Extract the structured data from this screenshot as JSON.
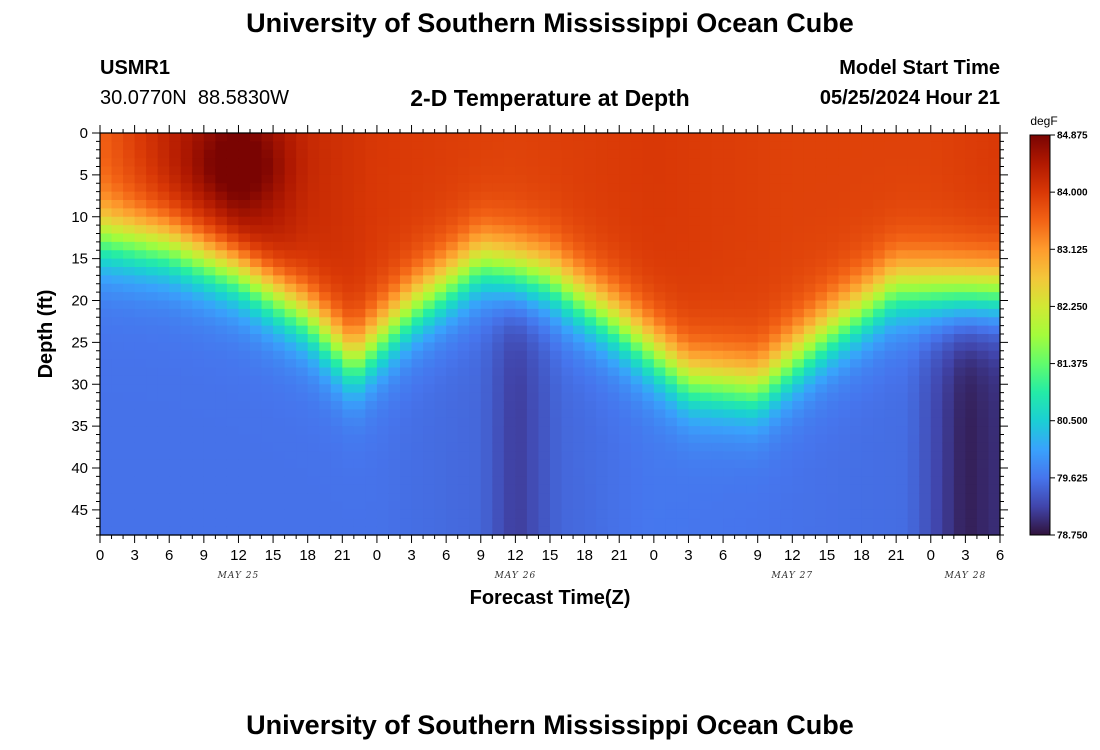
{
  "header": {
    "title": "University of Southern Mississippi Ocean Cube",
    "station_id": "USMR1",
    "coords": "30.0770N  88.5830W",
    "plot_title": "2-D Temperature at Depth",
    "start_label": "Model Start Time",
    "start_value": "05/25/2024 Hour 21"
  },
  "footer": {
    "title": "University of Southern Mississippi Ocean Cube"
  },
  "chart_data": {
    "type": "heatmap",
    "title": "2-D Temperature at Depth",
    "xlabel": "Forecast Time(Z)",
    "ylabel": "Depth (ft)",
    "x_hours": [
      0,
      78
    ],
    "ylim": [
      0,
      48
    ],
    "x_ticks": [
      "0",
      "3",
      "6",
      "9",
      "12",
      "15",
      "18",
      "21",
      "0",
      "3",
      "6",
      "9",
      "12",
      "15",
      "18",
      "21",
      "0",
      "3",
      "6",
      "9",
      "12",
      "15",
      "18",
      "21",
      "0",
      "3",
      "6"
    ],
    "y_ticks": [
      "0",
      "5",
      "10",
      "15",
      "20",
      "25",
      "30",
      "35",
      "40",
      "45"
    ],
    "y_tick_values": [
      0,
      5,
      10,
      15,
      20,
      25,
      30,
      35,
      40,
      45
    ],
    "date_labels": [
      {
        "label": "MAY 25",
        "hour": 12
      },
      {
        "label": "MAY 26",
        "hour": 36
      },
      {
        "label": "MAY 27",
        "hour": 60
      },
      {
        "label": "MAY 28",
        "hour": 75
      }
    ],
    "colorbar": {
      "unit": "degF",
      "min": 78.75,
      "max": 84.875,
      "ticks": [
        "84.875",
        "84.000",
        "83.125",
        "82.250",
        "81.375",
        "80.500",
        "79.625",
        "78.750"
      ],
      "tick_values": [
        84.875,
        84.0,
        83.125,
        82.25,
        81.375,
        80.5,
        79.625,
        78.75
      ],
      "colors": [
        "#30123b",
        "#4145ab",
        "#4675ed",
        "#39a2fc",
        "#1bcfd4",
        "#24eca6",
        "#61fc6c",
        "#a4fc3b",
        "#d1e834",
        "#f3c63a",
        "#fe9b2d",
        "#f36315",
        "#d93806",
        "#b11901",
        "#7a0402"
      ]
    },
    "thermocline_depth_ft": {
      "hours": [
        0,
        6,
        12,
        18,
        22,
        27,
        33,
        39,
        45,
        51,
        57,
        63,
        69,
        75,
        78
      ],
      "depths": [
        12.5,
        13.5,
        16.5,
        22,
        27.5,
        21,
        15.5,
        17.5,
        23,
        29.5,
        30.5,
        24,
        18.5,
        19,
        19
      ]
    },
    "surface_temp_degF": {
      "hours": [
        0,
        6,
        12,
        18,
        24,
        36,
        48,
        60,
        72,
        78
      ],
      "values": [
        83.6,
        84.3,
        84.8,
        84.2,
        84.0,
        83.9,
        84.0,
        83.9,
        83.9,
        84.0
      ]
    },
    "bottom_temp_degF": {
      "hours": [
        0,
        12,
        24,
        33,
        36,
        40,
        48,
        60,
        70,
        75,
        78
      ],
      "values": [
        79.6,
        79.6,
        79.6,
        79.5,
        79.1,
        79.5,
        79.65,
        79.6,
        79.55,
        78.85,
        79.0
      ]
    }
  }
}
